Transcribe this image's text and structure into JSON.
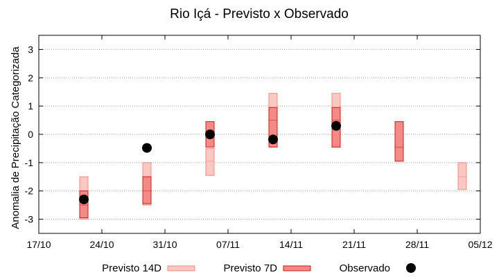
{
  "chart_data": {
    "type": "box-range",
    "title": "Rio Içá - Previsto x Observado",
    "xlabel": "",
    "ylabel": "Anomalia de Precipitação Categorizada",
    "ylim": [
      -3.5,
      3.5
    ],
    "yticks": [
      3,
      2,
      1,
      0,
      -1,
      -2,
      -3
    ],
    "ytick_labels": [
      "3",
      "2",
      "1",
      "0",
      "-1",
      "-2",
      "-3"
    ],
    "xlim": [
      "2024-10-17",
      "2024-12-05"
    ],
    "xticks": [
      "2024-10-17",
      "2024-10-24",
      "2024-10-31",
      "2024-11-07",
      "2024-11-14",
      "2024-11-21",
      "2024-11-28",
      "2024-12-05"
    ],
    "xtick_labels": [
      "17/10",
      "24/10",
      "31/10",
      "07/11",
      "14/11",
      "21/11",
      "28/11",
      "05/12"
    ],
    "grid": "horizontal dotted",
    "legend_position": "bottom",
    "colors": {
      "previsto_14d_fill": "#f9c8c2",
      "previsto_14d_edge": "#f08a80",
      "previsto_7d_fill": "#f48a85",
      "previsto_7d_edge": "#d01818",
      "observado": "#000000",
      "grid": "#999999"
    },
    "series": [
      {
        "name": "Previsto 14D",
        "boxes": [
          {
            "date": "2024-10-22",
            "low": -3.0,
            "high": -1.5,
            "mid": -2.0
          },
          {
            "date": "2024-10-29",
            "low": -2.5,
            "high": -1.0,
            "mid": -2.0
          },
          {
            "date": "2024-11-05",
            "low": -1.45,
            "high": -0.5,
            "mid": -0.95
          },
          {
            "date": "2024-11-12",
            "low": -0.45,
            "high": 1.45,
            "mid": 0.5
          },
          {
            "date": "2024-11-19",
            "low": -0.45,
            "high": 1.45,
            "mid": 0.5
          },
          {
            "date": "2024-12-03",
            "low": -1.95,
            "high": -1.0,
            "mid": -1.5
          }
        ]
      },
      {
        "name": "Previsto 7D",
        "boxes": [
          {
            "date": "2024-10-22",
            "low": -2.95,
            "high": -2.0,
            "mid": -2.5
          },
          {
            "date": "2024-10-29",
            "low": -2.45,
            "high": -1.5,
            "mid": -2.0
          },
          {
            "date": "2024-11-05",
            "low": -0.45,
            "high": 0.45,
            "mid": 0.0
          },
          {
            "date": "2024-11-12",
            "low": -0.45,
            "high": 0.95,
            "mid": 0.5
          },
          {
            "date": "2024-11-19",
            "low": -0.45,
            "high": 0.95,
            "mid": 0.5
          },
          {
            "date": "2024-11-26",
            "low": -0.95,
            "high": 0.45,
            "mid": -0.45
          }
        ]
      },
      {
        "name": "Observado",
        "points": [
          {
            "date": "2024-10-22",
            "value": -2.3
          },
          {
            "date": "2024-10-29",
            "value": -0.48
          },
          {
            "date": "2024-11-05",
            "value": 0.0
          },
          {
            "date": "2024-11-12",
            "value": -0.18
          },
          {
            "date": "2024-11-19",
            "value": 0.3
          }
        ]
      }
    ]
  }
}
